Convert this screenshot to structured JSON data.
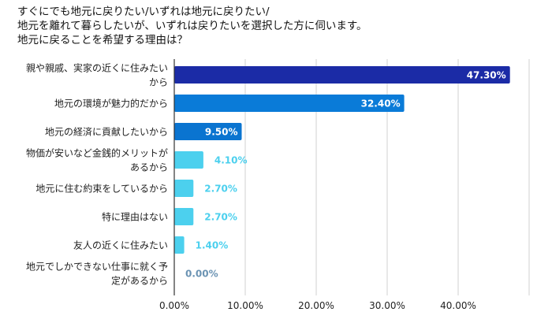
{
  "chart_data": {
    "type": "bar",
    "orientation": "horizontal",
    "title": [
      "すぐにでも地元に戻りたい/いずれは地元に戻りたい/",
      "地元を離れて暮らしたいが、いずれは戻りたいを選択した方に伺います。",
      "地元に戻ることを希望する理由は？"
    ],
    "categories": [
      [
        "親や親戚、実家の近くに住みたい",
        "から"
      ],
      [
        "地元の環境が魅力的だから"
      ],
      [
        "地元の経済に貢献したいから"
      ],
      [
        "物価が安いなど金銭的メリットが",
        "あるから"
      ],
      [
        "地元に住む約束をしているから"
      ],
      [
        "特に理由はない"
      ],
      [
        "友人の近くに住みたい"
      ],
      [
        "地元でしかできない仕事に就く予",
        "定があるから"
      ]
    ],
    "values": [
      47.3,
      32.4,
      9.5,
      4.1,
      2.7,
      2.7,
      1.4,
      0.0
    ],
    "data_labels": [
      "47.30%",
      "32.40%",
      "9.50%",
      "4.10%",
      "2.70%",
      "2.70%",
      "1.40%",
      "0.00%"
    ],
    "bar_colors": [
      "#1b2ba6",
      "#0a7bd8",
      "#0a74d0",
      "#4cd0ee",
      "#4cd0ee",
      "#4cd0ee",
      "#4cd0ee",
      "#4cd0ee"
    ],
    "label_colors": [
      "#ffffff",
      "#ffffff",
      "#ffffff",
      "#4cd0ee",
      "#4cd0ee",
      "#4cd0ee",
      "#4cd0ee",
      "#6b93b3"
    ],
    "xlim": [
      0,
      50
    ],
    "x_ticks": [
      0,
      10,
      20,
      30,
      40
    ],
    "x_tick_labels": [
      "0.00%",
      "10.00%",
      "20.00%",
      "30.00%",
      "40.00%"
    ],
    "grid": true,
    "xlabel": "",
    "ylabel": ""
  }
}
